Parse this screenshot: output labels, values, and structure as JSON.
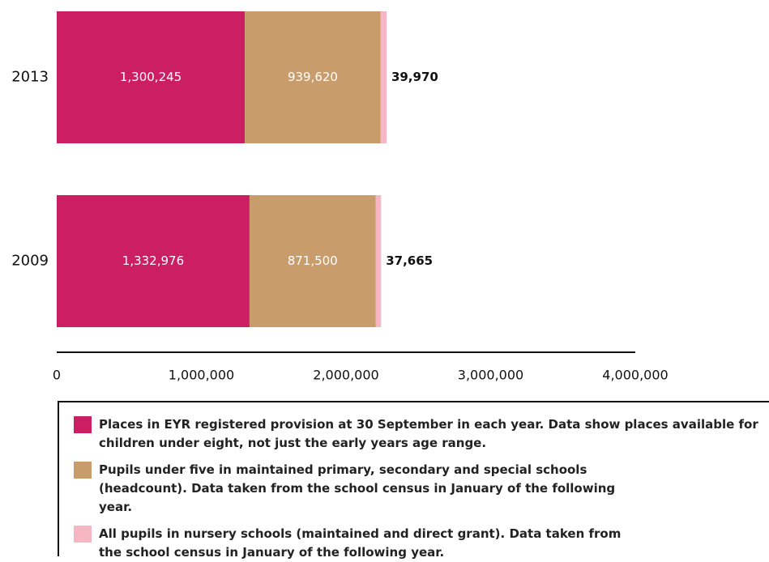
{
  "chart_data": {
    "type": "stacked-bar-horizontal",
    "categories": [
      "2013",
      "2009"
    ],
    "series": [
      {
        "name": "Places in EYR registered provision at 30 September in each year. Data show places available for children under eight, not just the early years age range.",
        "color": "#cc1f63",
        "values": [
          1300245,
          1332976
        ],
        "value_labels": [
          "1,300,245",
          "1,332,976"
        ]
      },
      {
        "name": "Pupils under five in maintained primary, secondary and special schools (headcount). Data taken from the school census in January of the following year.",
        "color": "#c99c6c",
        "values": [
          939620,
          871500
        ],
        "value_labels": [
          "939,620",
          "871,500"
        ]
      },
      {
        "name": "All pupils in nursery schools (maintained and direct grant). Data taken from the school census in January of the following year.",
        "color": "#f7b6c3",
        "values": [
          39970,
          37665
        ],
        "value_labels": [
          "39,970",
          "37,665"
        ]
      }
    ],
    "xlim": [
      0,
      4000000
    ],
    "xticks": [
      0,
      {
        "value": 1000000,
        "label": "1,000,000"
      },
      {
        "value": 2000000,
        "label": "2,000,000"
      },
      {
        "value": 3000000,
        "label": "3,000,000"
      },
      {
        "value": 4000000,
        "label": "4,000,000"
      }
    ]
  }
}
